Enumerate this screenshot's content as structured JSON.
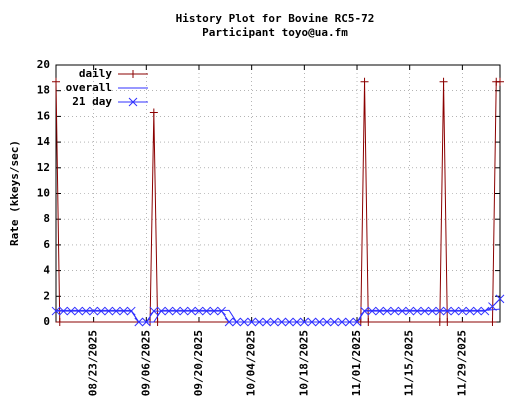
{
  "chart_data": {
    "type": "line",
    "title": "History Plot for Bovine RC5-72",
    "subtitle": "Participant toyo@ua.fm",
    "y_label": "Rate (kkeys/sec)",
    "xlim": [
      "08/13/2025",
      "12/09/2025"
    ],
    "xticks": [
      "08/23/2025",
      "09/06/2025",
      "09/20/2025",
      "10/04/2025",
      "10/18/2025",
      "11/01/2025",
      "11/15/2025",
      "11/29/2025"
    ],
    "ylim": [
      0,
      20
    ],
    "yticks": [
      0,
      2,
      4,
      6,
      8,
      10,
      12,
      14,
      16,
      18,
      20
    ],
    "grid": true,
    "legend": "top-left",
    "series": [
      {
        "name": "daily",
        "color": "#8b0000",
        "marker": "+",
        "x": [
          "08/13/2025",
          "08/14/2025",
          "09/07/2025",
          "09/08/2025",
          "09/09/2025",
          "11/02/2025",
          "11/03/2025",
          "11/04/2025",
          "11/23/2025",
          "11/24/2025",
          "11/25/2025",
          "12/07/2025",
          "12/08/2025",
          "12/09/2025"
        ],
        "values": [
          18.7,
          0,
          0,
          16.3,
          0,
          0,
          18.7,
          0,
          0,
          18.7,
          0,
          0,
          18.7,
          18.7
        ]
      },
      {
        "name": "overall",
        "color": "#3030ff",
        "marker": null,
        "x": [
          "08/13/2025",
          "09/02/2025",
          "09/04/2025",
          "09/08/2025",
          "09/10/2025",
          "09/28/2025",
          "09/30/2025",
          "11/01/2025",
          "11/03/2025",
          "12/05/2025",
          "12/09/2025"
        ],
        "values": [
          0.9,
          0.9,
          0,
          0,
          0.9,
          0.9,
          0,
          0,
          0.9,
          0.9,
          1.0
        ]
      },
      {
        "name": "21 day",
        "color": "#3030ff",
        "marker": "x",
        "x": [
          "08/13/2025",
          "08/15/2025",
          "08/17/2025",
          "08/19/2025",
          "08/21/2025",
          "08/23/2025",
          "08/25/2025",
          "08/27/2025",
          "08/29/2025",
          "08/31/2025",
          "09/02/2025",
          "09/04/2025",
          "09/06/2025",
          "09/08/2025",
          "09/10/2025",
          "09/12/2025",
          "09/14/2025",
          "09/16/2025",
          "09/18/2025",
          "09/20/2025",
          "09/22/2025",
          "09/24/2025",
          "09/26/2025",
          "09/28/2025",
          "09/30/2025",
          "10/02/2025",
          "10/04/2025",
          "10/06/2025",
          "10/08/2025",
          "10/10/2025",
          "10/12/2025",
          "10/14/2025",
          "10/16/2025",
          "10/18/2025",
          "10/20/2025",
          "10/22/2025",
          "10/24/2025",
          "10/26/2025",
          "10/28/2025",
          "10/30/2025",
          "11/01/2025",
          "11/03/2025",
          "11/05/2025",
          "11/07/2025",
          "11/09/2025",
          "11/11/2025",
          "11/13/2025",
          "11/15/2025",
          "11/17/2025",
          "11/19/2025",
          "11/21/2025",
          "11/23/2025",
          "11/25/2025",
          "11/27/2025",
          "11/29/2025",
          "12/01/2025",
          "12/03/2025",
          "12/05/2025",
          "12/07/2025",
          "12/09/2025"
        ],
        "values": [
          0.85,
          0.85,
          0.85,
          0.85,
          0.85,
          0.85,
          0.85,
          0.85,
          0.85,
          0.85,
          0.85,
          0,
          0,
          0.85,
          0.85,
          0.85,
          0.85,
          0.85,
          0.85,
          0.85,
          0.85,
          0.85,
          0.85,
          0,
          0,
          0,
          0,
          0,
          0,
          0,
          0,
          0,
          0,
          0,
          0,
          0,
          0,
          0,
          0,
          0,
          0,
          0.85,
          0.85,
          0.85,
          0.85,
          0.85,
          0.85,
          0.85,
          0.85,
          0.85,
          0.85,
          0.85,
          0.85,
          0.85,
          0.85,
          0.85,
          0.85,
          0.85,
          1.2,
          1.8
        ]
      }
    ]
  }
}
